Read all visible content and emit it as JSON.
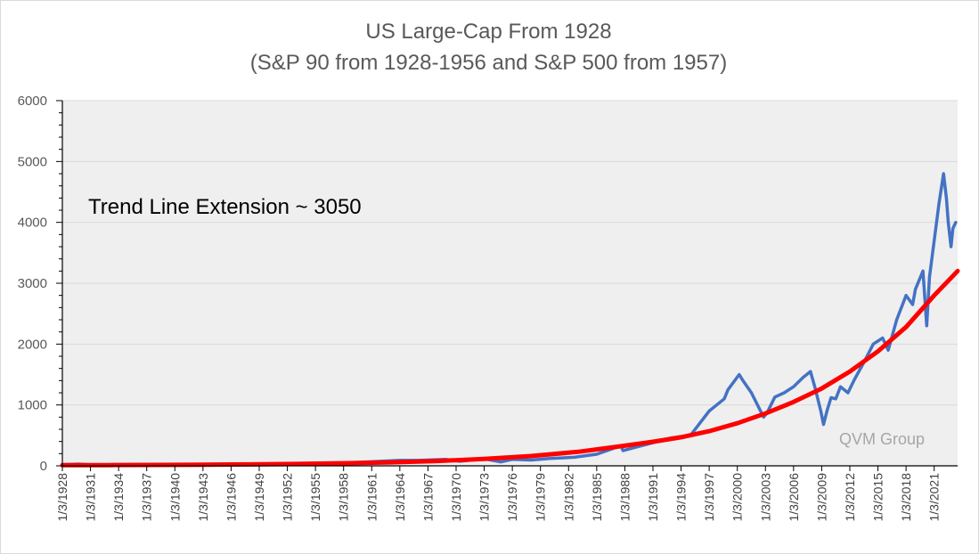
{
  "chart_data": {
    "type": "line",
    "title": "US Large-Cap From 1928",
    "subtitle": "(S&P 90 from 1928-1956 and S&P 500 from 1957)",
    "xlabel": "",
    "ylabel": "",
    "ylim": [
      0,
      6000
    ],
    "yticks": [
      "0",
      "1000",
      "2000",
      "3000",
      "4000",
      "5000",
      "6000"
    ],
    "xlim": [
      1928.0,
      2023.5
    ],
    "xtick_labels": [
      "1/3/1928",
      "1/3/1931",
      "1/3/1934",
      "1/3/1937",
      "1/3/1940",
      "1/3/1943",
      "1/3/1946",
      "1/3/1949",
      "1/3/1952",
      "1/3/1955",
      "1/3/1958",
      "1/3/1961",
      "1/3/1964",
      "1/3/1967",
      "1/3/1970",
      "1/3/1973",
      "1/3/1976",
      "1/3/1979",
      "1/3/1982",
      "1/3/1985",
      "1/3/1988",
      "1/3/1991",
      "1/3/1994",
      "1/3/1997",
      "1/3/2000",
      "1/3/2003",
      "1/3/2006",
      "1/3/2009",
      "1/3/2012",
      "1/3/2015",
      "1/3/2018",
      "1/3/2021"
    ],
    "grid": "horizontal",
    "plot_background": "#efefef",
    "series": [
      {
        "color": "#4472c4",
        "x": [
          1928.0,
          1929.7,
          1932.5,
          1937.0,
          1942.3,
          1946.0,
          1950.0,
          1955.0,
          1958.0,
          1961.0,
          1964.0,
          1966.0,
          1968.9,
          1970.4,
          1973.0,
          1974.8,
          1976.0,
          1978.0,
          1980.0,
          1982.6,
          1985.0,
          1987.6,
          1987.8,
          1990.0,
          1991.0,
          1993.0,
          1995.0,
          1997.0,
          1998.6,
          1999.0,
          2000.2,
          2000.6,
          2001.5,
          2002.8,
          2003.2,
          2004.0,
          2005.0,
          2006.0,
          2007.0,
          2007.8,
          2008.3,
          2008.9,
          2009.2,
          2009.6,
          2010.0,
          2010.5,
          2011.0,
          2011.8,
          2012.5,
          2013.5,
          2014.5,
          2015.5,
          2016.1,
          2017.0,
          2018.0,
          2018.7,
          2019.0,
          2019.8,
          2020.2,
          2020.5,
          2021.0,
          2021.5,
          2022.0,
          2022.3,
          2022.5,
          2022.8,
          2023.0,
          2023.3
        ],
        "y": [
          18,
          30,
          5,
          15,
          9,
          18,
          20,
          40,
          45,
          68,
          90,
          90,
          105,
          75,
          115,
          65,
          105,
          95,
          120,
          140,
          190,
          330,
          250,
          340,
          380,
          460,
          500,
          900,
          1100,
          1250,
          1500,
          1400,
          1200,
          800,
          880,
          1130,
          1200,
          1300,
          1450,
          1550,
          1280,
          900,
          680,
          920,
          1120,
          1100,
          1300,
          1200,
          1420,
          1700,
          2000,
          2100,
          1900,
          2400,
          2800,
          2650,
          2900,
          3200,
          2300,
          3100,
          3700,
          4300,
          4800,
          4400,
          4000,
          3600,
          3900,
          4000
        ]
      },
      {
        "color": "#ff0000",
        "x": [
          1928,
          1933,
          1938,
          1943,
          1948,
          1953,
          1958,
          1963,
          1968,
          1973,
          1978,
          1983,
          1988,
          1991,
          1994,
          1997,
          2000,
          2003,
          2006,
          2009,
          2012,
          2015,
          2018,
          2021,
          2023.5
        ],
        "y": [
          10,
          12,
          15,
          19,
          24,
          31,
          42,
          57,
          79,
          112,
          161,
          230,
          330,
          395,
          470,
          570,
          700,
          860,
          1050,
          1270,
          1550,
          1880,
          2280,
          2800,
          3200
        ]
      }
    ],
    "annotations": [
      "Trend Line Extension ~ 3050",
      "QVM Group"
    ]
  }
}
